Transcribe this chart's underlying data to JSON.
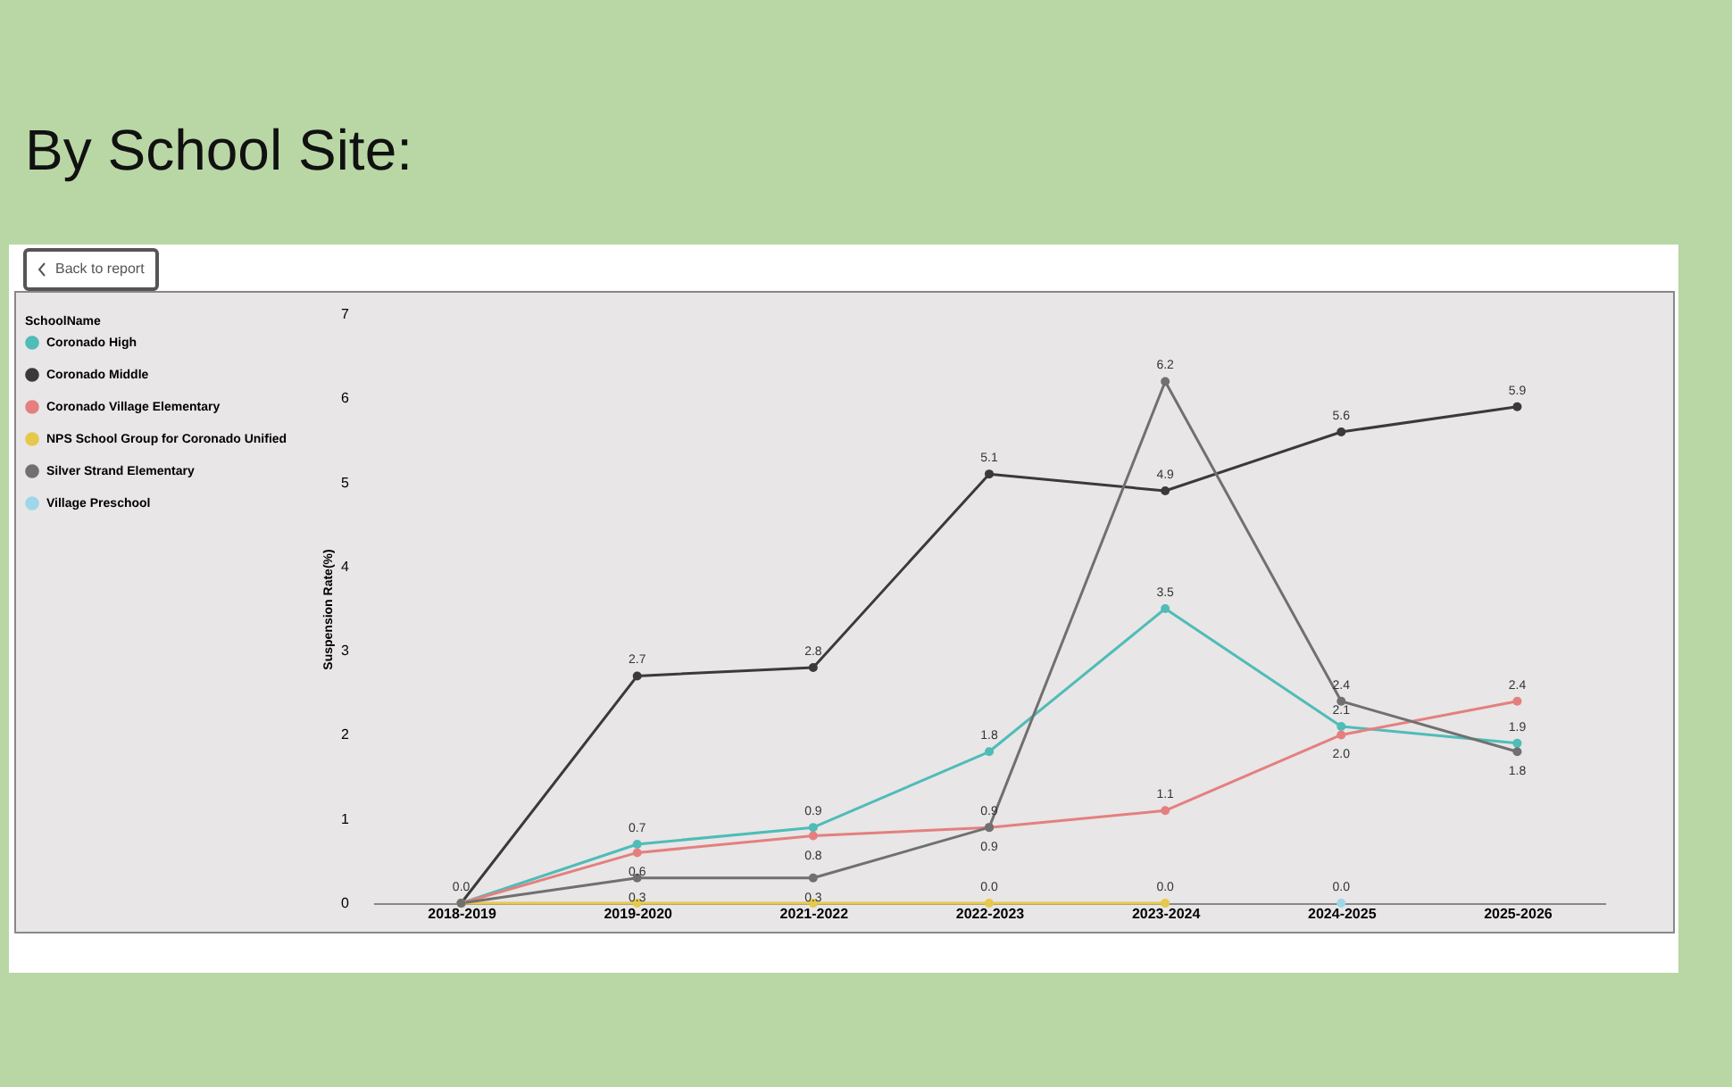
{
  "chart_data": {
    "type": "line",
    "title": "By School Site:",
    "ylabel": "Suspension Rate(%)",
    "legend_title": "SchoolName",
    "annotations": [
      "Back to report"
    ],
    "categories": [
      "2018-2019",
      "2019-2020",
      "2021-2022",
      "2022-2023",
      "2023-2024",
      "2024-2025",
      "2025-2026"
    ],
    "series": [
      {
        "name": "Coronado High",
        "color": "#4fbcb8",
        "values": [
          0,
          0.7,
          0.9,
          1.8,
          3.5,
          2.1,
          1.9
        ],
        "value_labels": [
          "0.0",
          "0.7",
          "0.9",
          "1.8",
          "3.5",
          "2.1",
          "1.9"
        ]
      },
      {
        "name": "Coronado Middle",
        "color": "#3a3a3a",
        "values": [
          0,
          2.7,
          2.8,
          5.1,
          4.9,
          5.6,
          5.9
        ],
        "value_labels": [
          null,
          "2.7",
          "2.8",
          "5.1",
          "4.9",
          "5.6",
          "5.9"
        ]
      },
      {
        "name": "Coronado Village Elementary",
        "color": "#e57f7f",
        "values": [
          0,
          0.6,
          0.8,
          0.9,
          1.1,
          2.0,
          2.4
        ],
        "value_labels": [
          null,
          "0.6",
          "0.8",
          "0.9",
          "1.1",
          "2.0",
          "2.4"
        ]
      },
      {
        "name": "NPS School Group for Coronado Unified",
        "color": "#e6c84a",
        "values": [
          0,
          0,
          0,
          0,
          0,
          null,
          null
        ],
        "value_labels": [
          null,
          null,
          null,
          "0.0",
          "0.0",
          null,
          null
        ]
      },
      {
        "name": "Silver Strand Elementary",
        "color": "#707070",
        "values": [
          0,
          0.3,
          0.3,
          0.9,
          6.2,
          2.4,
          1.8
        ],
        "value_labels": [
          null,
          "0.3",
          "0.3",
          "0.9",
          "6.2",
          "2.4",
          "1.8"
        ]
      },
      {
        "name": "Village Preschool",
        "color": "#9fd6ea",
        "values": [
          null,
          null,
          null,
          null,
          null,
          0,
          null
        ],
        "value_labels": [
          null,
          null,
          null,
          null,
          null,
          "0.0",
          null
        ]
      }
    ],
    "ylim": [
      0,
      7
    ],
    "yticks": [
      0,
      1,
      2,
      3,
      4,
      5,
      6,
      7
    ],
    "grid": false,
    "legend": "left",
    "marker": "circle",
    "line_style": "solid"
  }
}
